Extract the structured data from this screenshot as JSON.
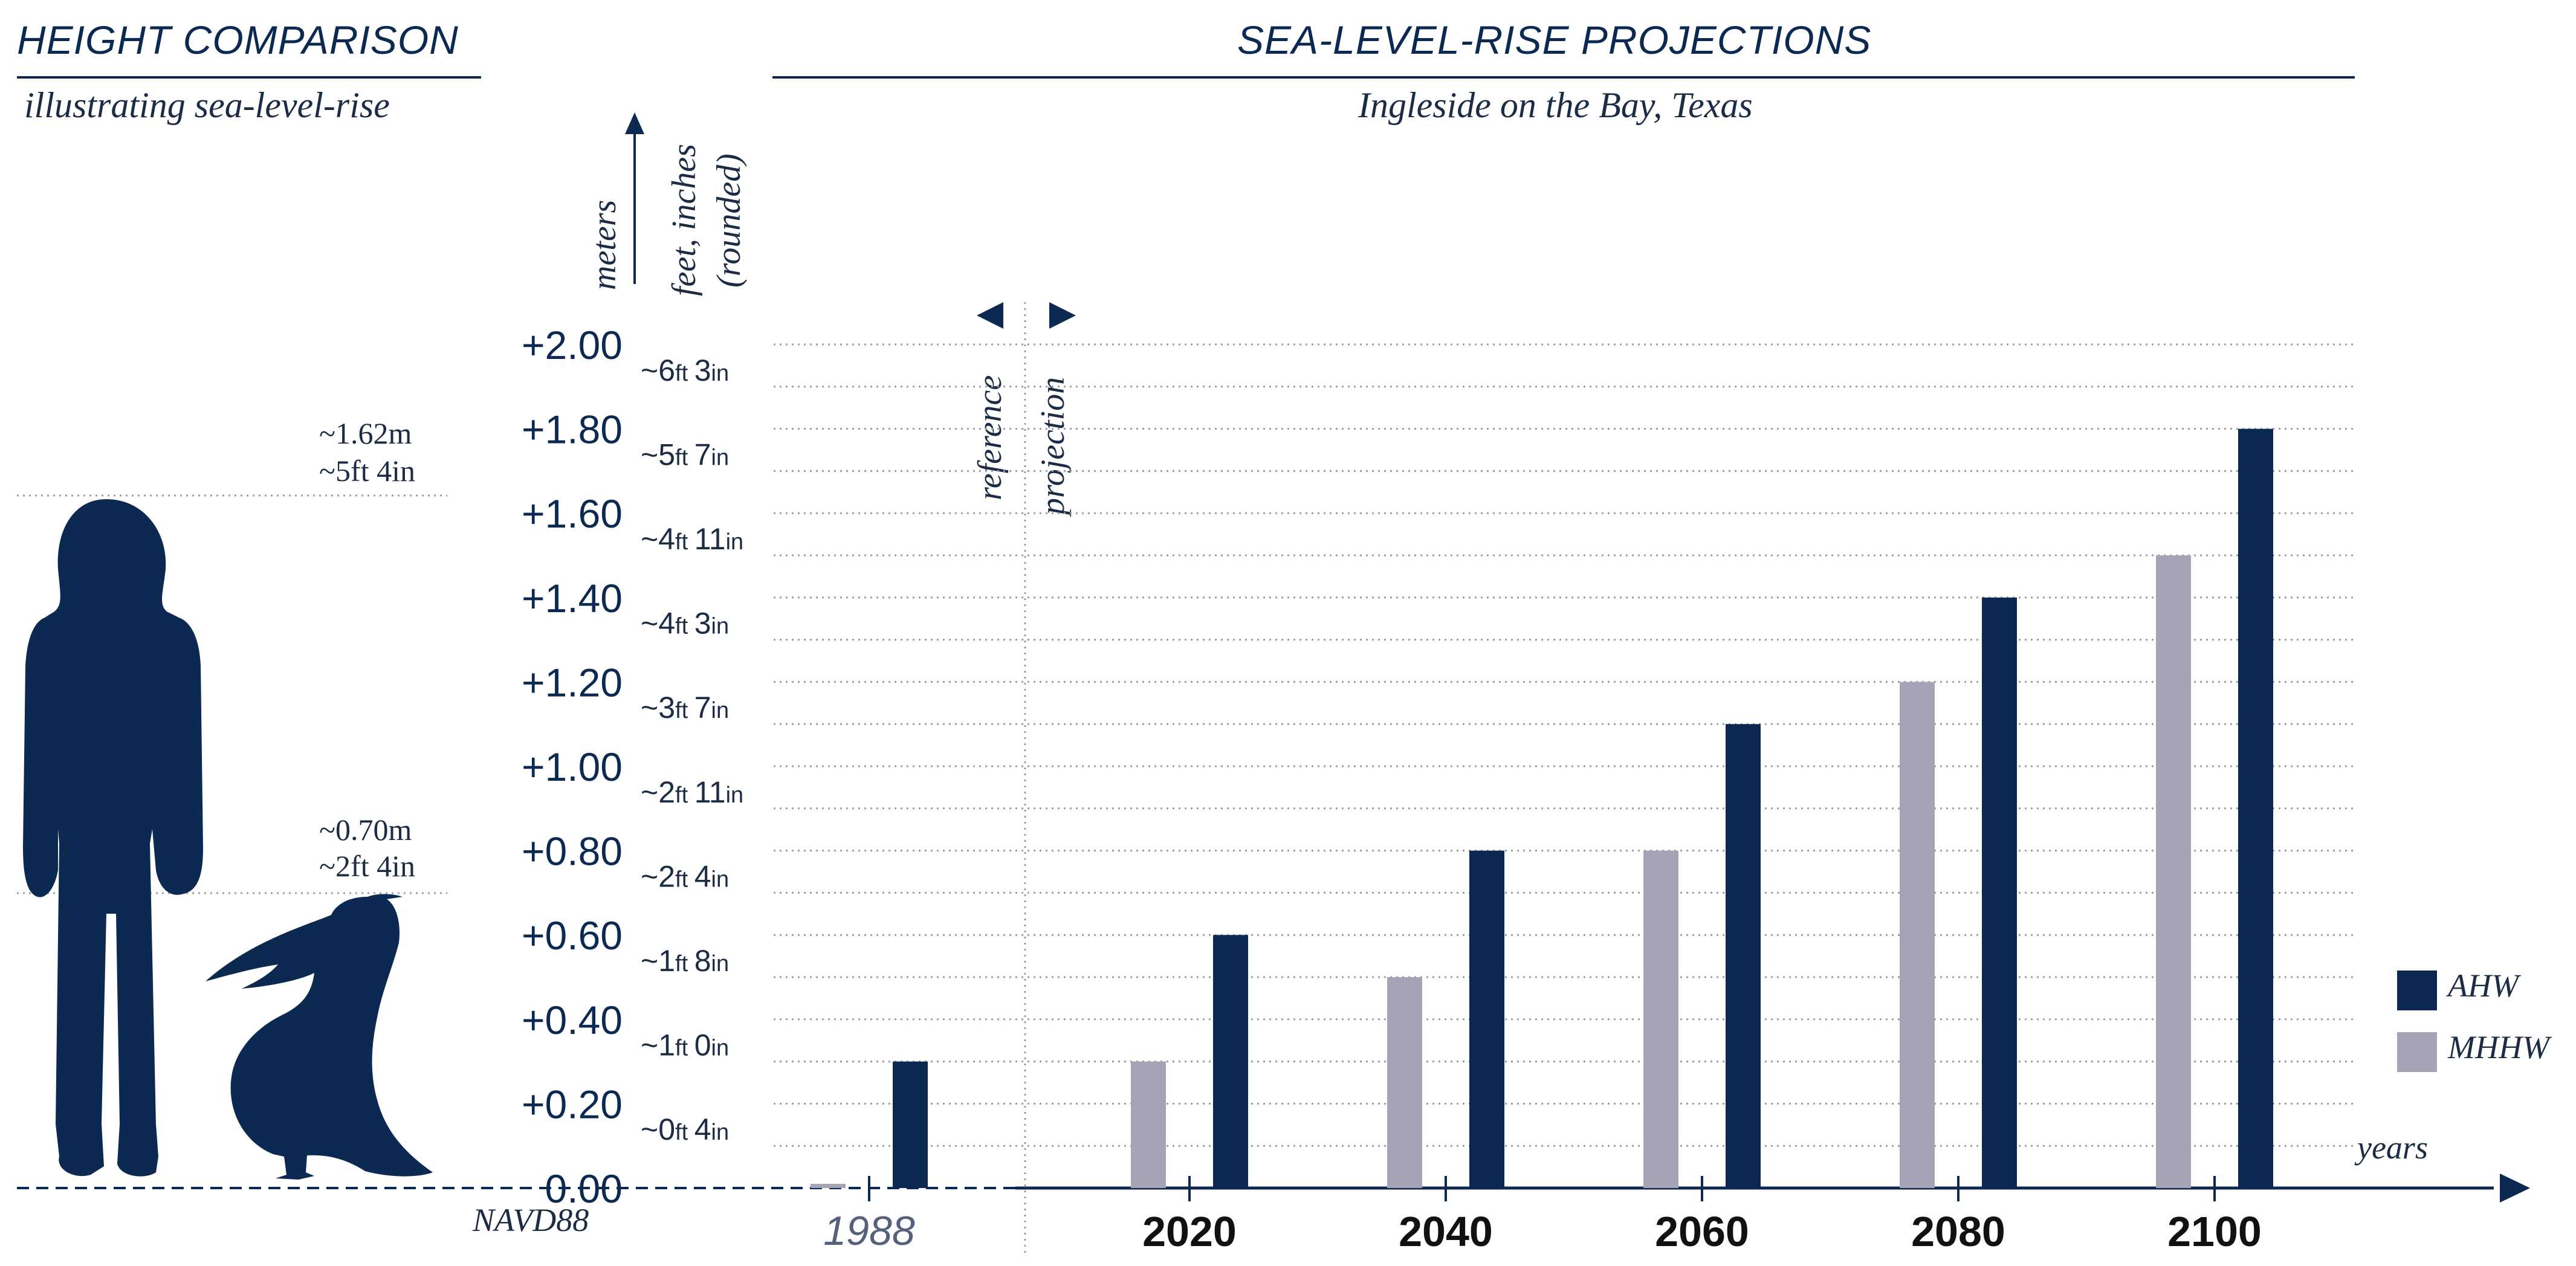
{
  "left_panel": {
    "title": "HEIGHT COMPARISON",
    "subtitle": "illustrating sea-level-rise",
    "person_height_m": "~1.62m",
    "person_height_ft": "~5ft 4in",
    "pelican_height_m": "~0.70m",
    "pelican_height_ft": "~2ft 4in",
    "silhouettes": [
      "person-silhouette",
      "pelican-silhouette"
    ]
  },
  "chart_data": {
    "type": "bar",
    "title": "SEA-LEVEL-RISE PROJECTIONS",
    "subtitle": "Ingleside on the Bay, Texas",
    "ylabel_primary": "meters",
    "ylabel_secondary": "feet, inches",
    "ylabel_secondary_note": "(rounded)",
    "xlabel": "years",
    "baseline_label": "NAVD88",
    "reference_label": "reference",
    "projection_label": "projection",
    "ylim": [
      0,
      2.0
    ],
    "grid": true,
    "legend_position": "right",
    "y_ticks_m": [
      "0.00",
      "+0.20",
      "+0.40",
      "+0.60",
      "+0.80",
      "+1.00",
      "+1.20",
      "+1.40",
      "+1.60",
      "+1.80",
      "+2.00"
    ],
    "y_ticks_ft": [
      {
        "value": 0.1,
        "ft": "~0",
        "in": "4"
      },
      {
        "value": 0.3,
        "ft": "~1",
        "in": "0"
      },
      {
        "value": 0.5,
        "ft": "~1",
        "in": "8"
      },
      {
        "value": 0.7,
        "ft": "~2",
        "in": "4"
      },
      {
        "value": 0.9,
        "ft": "~2",
        "in": "11"
      },
      {
        "value": 1.1,
        "ft": "~3",
        "in": "7"
      },
      {
        "value": 1.3,
        "ft": "~4",
        "in": "3"
      },
      {
        "value": 1.5,
        "ft": "~4",
        "in": "11"
      },
      {
        "value": 1.7,
        "ft": "~5",
        "in": "7"
      },
      {
        "value": 1.9,
        "ft": "~6",
        "in": "3"
      }
    ],
    "categories": [
      "1988",
      "2020",
      "2040",
      "2060",
      "2080",
      "2100"
    ],
    "reference_category": "1988",
    "series": [
      {
        "name": "MHHW",
        "color": "#a5a3b6",
        "values": [
          0.01,
          0.3,
          0.5,
          0.8,
          1.2,
          1.5
        ]
      },
      {
        "name": "AHW",
        "color": "#0c2952",
        "values": [
          0.3,
          0.6,
          0.8,
          1.1,
          1.4,
          1.8
        ]
      }
    ],
    "legend": [
      {
        "name": "AHW",
        "color": "#0c2952"
      },
      {
        "name": "MHHW",
        "color": "#a5a3b6"
      }
    ],
    "person_reference_m": 1.62,
    "pelican_reference_m": 0.7
  }
}
